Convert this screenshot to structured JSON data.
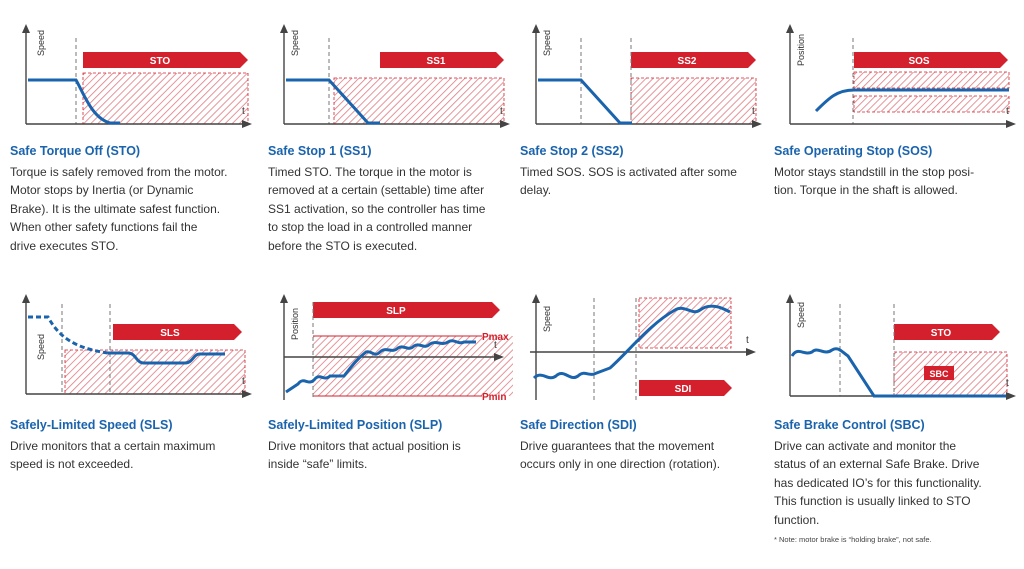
{
  "colors": {
    "accent_red": "#d3202c",
    "curve_blue": "#1a63ad",
    "title_blue": "#1a63ad",
    "axis": "#444444",
    "hatch": "#e07a80"
  },
  "panels": [
    {
      "id": "sto",
      "banner": "STO",
      "y_label": "Speed",
      "x_label": "t",
      "title": "Safe Torque Off (STO)",
      "desc": [
        "Torque is safely removed from the motor.",
        "Motor stops by Inertia (or Dynamic",
        "Brake). It is the ultimate safest function.",
        "When other safety functions fail the",
        "drive executes STO."
      ]
    },
    {
      "id": "ss1",
      "banner": "SS1",
      "y_label": "Speed",
      "x_label": "t",
      "title": "Safe Stop 1 (SS1)",
      "desc": [
        "Timed STO. The torque in the motor is",
        "removed at a certain (settable) time after",
        "SS1 activation, so the controller has time",
        "to stop the load in a controlled manner",
        "before the  STO is executed."
      ]
    },
    {
      "id": "ss2",
      "banner": "SS2",
      "y_label": "Speed",
      "x_label": "t",
      "title": "Safe Stop 2 (SS2)",
      "desc": [
        "Timed SOS. SOS is activated after some",
        "delay."
      ]
    },
    {
      "id": "sos",
      "banner": "SOS",
      "y_label": "Position",
      "x_label": "t",
      "title": "Safe Operating Stop (SOS)",
      "desc": [
        "Motor stays standstill in the stop posi-",
        "tion. Torque in the shaft is allowed."
      ]
    },
    {
      "id": "sls",
      "banner": "SLS",
      "y_label": "Speed",
      "x_label": "t",
      "title": "Safely-Limited Speed (SLS)",
      "desc": [
        "Drive monitors that a certain maximum",
        "speed is not exceeded."
      ]
    },
    {
      "id": "slp",
      "banner": "SLP",
      "y_label": "Position",
      "x_label": "t",
      "pmax": "Pmax",
      "pmin": "Pmin",
      "title": "Safely-Limited Position (SLP)",
      "desc": [
        "Drive monitors that actual position is",
        "inside “safe” limits."
      ]
    },
    {
      "id": "sdi",
      "banner": "SDI",
      "y_label": "Speed",
      "x_label": "t",
      "title": "Safe Direction (SDI)",
      "desc": [
        "Drive guarantees that the movement",
        "occurs only in one direction (rotation)."
      ]
    },
    {
      "id": "sbc",
      "banner": "STO",
      "banner2": "SBC",
      "y_label": "Speed",
      "x_label": "t",
      "title": "Safe Brake Control (SBC)",
      "desc": [
        "Drive can activate and monitor the",
        "status of an external Safe Brake. Drive",
        "has dedicated IO’s for this functionality.",
        "This function is usually linked to STO",
        "function."
      ]
    }
  ],
  "note": "* Note: motor brake is “holding brake”, not safe."
}
